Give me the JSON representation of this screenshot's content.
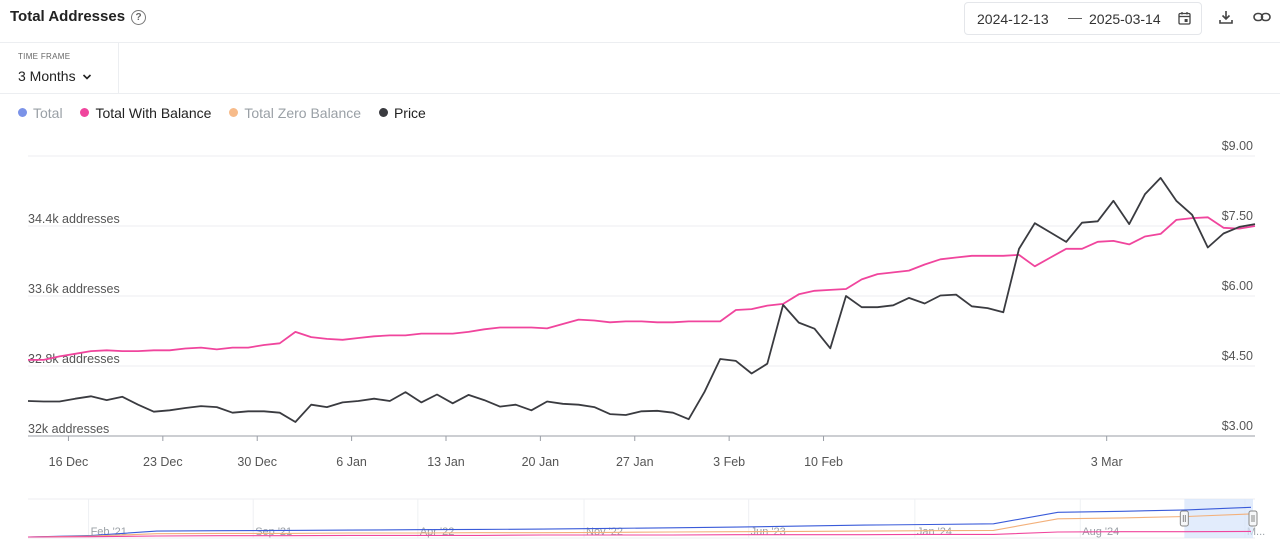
{
  "header": {
    "title": "Total Addresses",
    "help_icon": "?",
    "date_from": "2024-12-13",
    "date_separator": "—",
    "date_to": "2025-03-14",
    "icons": [
      "calendar-icon",
      "download-icon",
      "link-icon"
    ]
  },
  "time_frame": {
    "label": "TIME FRAME",
    "value": "3 Months",
    "icon": "chevron-down-icon"
  },
  "legend": [
    {
      "label": "Total",
      "color": "#7b93e8",
      "active": false
    },
    {
      "label": "Total With Balance",
      "color": "#f0459d",
      "active": true
    },
    {
      "label": "Total Zero Balance",
      "color": "#f7bb8a",
      "active": false
    },
    {
      "label": "Price",
      "color": "#3a3b40",
      "active": true
    }
  ],
  "chart_data": {
    "type": "line",
    "x_start": "2024-12-13",
    "x_end": "2025-03-14",
    "x_ticks": [
      "16 Dec",
      "23 Dec",
      "30 Dec",
      "6 Jan",
      "13 Jan",
      "20 Jan",
      "27 Jan",
      "3 Feb",
      "10 Feb",
      "3 Mar"
    ],
    "x_tick_dates": [
      "2024-12-16",
      "2024-12-23",
      "2024-12-30",
      "2025-01-06",
      "2025-01-13",
      "2025-01-20",
      "2025-01-27",
      "2025-02-03",
      "2025-02-10",
      "2025-03-03"
    ],
    "y_left": {
      "ticks": [
        "32k addresses",
        "32.8k addresses",
        "33.6k addresses",
        "34.4k addresses"
      ],
      "tick_values": [
        32000,
        32800,
        33600,
        34400
      ],
      "range": [
        32000,
        35200
      ]
    },
    "y_right": {
      "ticks": [
        "$3.00",
        "$4.50",
        "$6.00",
        "$7.50",
        "$9.00"
      ],
      "tick_values": [
        3.0,
        4.5,
        6.0,
        7.5,
        9.0
      ],
      "range": [
        3.0,
        9.0
      ]
    },
    "grid": true,
    "series": [
      {
        "name": "Total With Balance",
        "axis": "left",
        "color": "#f0459d",
        "values": [
          32870,
          32870,
          32910,
          32940,
          32970,
          32980,
          32970,
          32970,
          32980,
          32980,
          33000,
          33010,
          32990,
          33010,
          33010,
          33040,
          33060,
          33190,
          33130,
          33110,
          33100,
          33120,
          33140,
          33150,
          33150,
          33170,
          33170,
          33170,
          33190,
          33220,
          33240,
          33240,
          33240,
          33230,
          33280,
          33330,
          33320,
          33300,
          33310,
          33310,
          33300,
          33300,
          33310,
          33310,
          33310,
          33440,
          33450,
          33490,
          33510,
          33620,
          33660,
          33670,
          33680,
          33790,
          33850,
          33870,
          33890,
          33960,
          34020,
          34040,
          34060,
          34060,
          34060,
          34070,
          33940,
          34040,
          34140,
          34140,
          34220,
          34230,
          34190,
          34280,
          34310,
          34470,
          34490,
          34500,
          34380,
          34370,
          34400
        ]
      },
      {
        "name": "Price",
        "axis": "right",
        "color": "#3a3b40",
        "values": [
          3.75,
          3.74,
          3.74,
          3.8,
          3.85,
          3.77,
          3.84,
          3.67,
          3.52,
          3.55,
          3.6,
          3.64,
          3.62,
          3.5,
          3.53,
          3.53,
          3.5,
          3.3,
          3.67,
          3.62,
          3.72,
          3.75,
          3.8,
          3.75,
          3.94,
          3.72,
          3.89,
          3.7,
          3.88,
          3.77,
          3.63,
          3.67,
          3.55,
          3.74,
          3.69,
          3.67,
          3.62,
          3.47,
          3.45,
          3.53,
          3.54,
          3.5,
          3.36,
          3.94,
          4.65,
          4.61,
          4.34,
          4.55,
          5.81,
          5.43,
          5.3,
          4.88,
          6.0,
          5.76,
          5.76,
          5.8,
          5.96,
          5.84,
          6.01,
          6.03,
          5.78,
          5.74,
          5.65,
          7.01,
          7.56,
          7.36,
          7.16,
          7.57,
          7.6,
          8.04,
          7.54,
          8.18,
          8.53,
          8.04,
          7.74,
          7.04,
          7.34,
          7.48,
          7.54
        ]
      }
    ],
    "navigator": {
      "x_ticks": [
        "Feb '21",
        "Sep '21",
        "Apr '22",
        "Nov '22",
        "Jun '23",
        "Jan '24",
        "Aug '24",
        "M..."
      ],
      "x_tick_dates": [
        "2021-02-01",
        "2021-09-01",
        "2022-04-01",
        "2022-11-01",
        "2023-06-01",
        "2024-01-01",
        "2024-08-01",
        "2025-03-01"
      ],
      "x_start": "2020-11-15",
      "x_end": "2025-03-14",
      "selected_range": [
        "2024-12-13",
        "2025-03-14"
      ],
      "series": [
        {
          "name": "Total",
          "color": "#3a5bd9",
          "values": [
            0.0,
            0.05,
            0.18,
            0.19,
            0.2,
            0.21,
            0.22,
            0.23,
            0.24,
            0.26,
            0.28,
            0.3,
            0.33,
            0.36,
            0.38,
            0.4,
            0.75,
            0.78,
            0.82,
            0.9
          ]
        },
        {
          "name": "Total Zero Balance",
          "color": "#f3b07a",
          "values": [
            0.0,
            0.03,
            0.1,
            0.11,
            0.11,
            0.12,
            0.12,
            0.13,
            0.13,
            0.14,
            0.15,
            0.16,
            0.17,
            0.18,
            0.19,
            0.2,
            0.55,
            0.58,
            0.62,
            0.7
          ]
        },
        {
          "name": "Total With Balance",
          "color": "#f0459d",
          "values": [
            0.0,
            0.01,
            0.03,
            0.04,
            0.04,
            0.05,
            0.05,
            0.05,
            0.06,
            0.06,
            0.06,
            0.07,
            0.07,
            0.07,
            0.08,
            0.08,
            0.15,
            0.16,
            0.16,
            0.17
          ]
        }
      ]
    }
  }
}
